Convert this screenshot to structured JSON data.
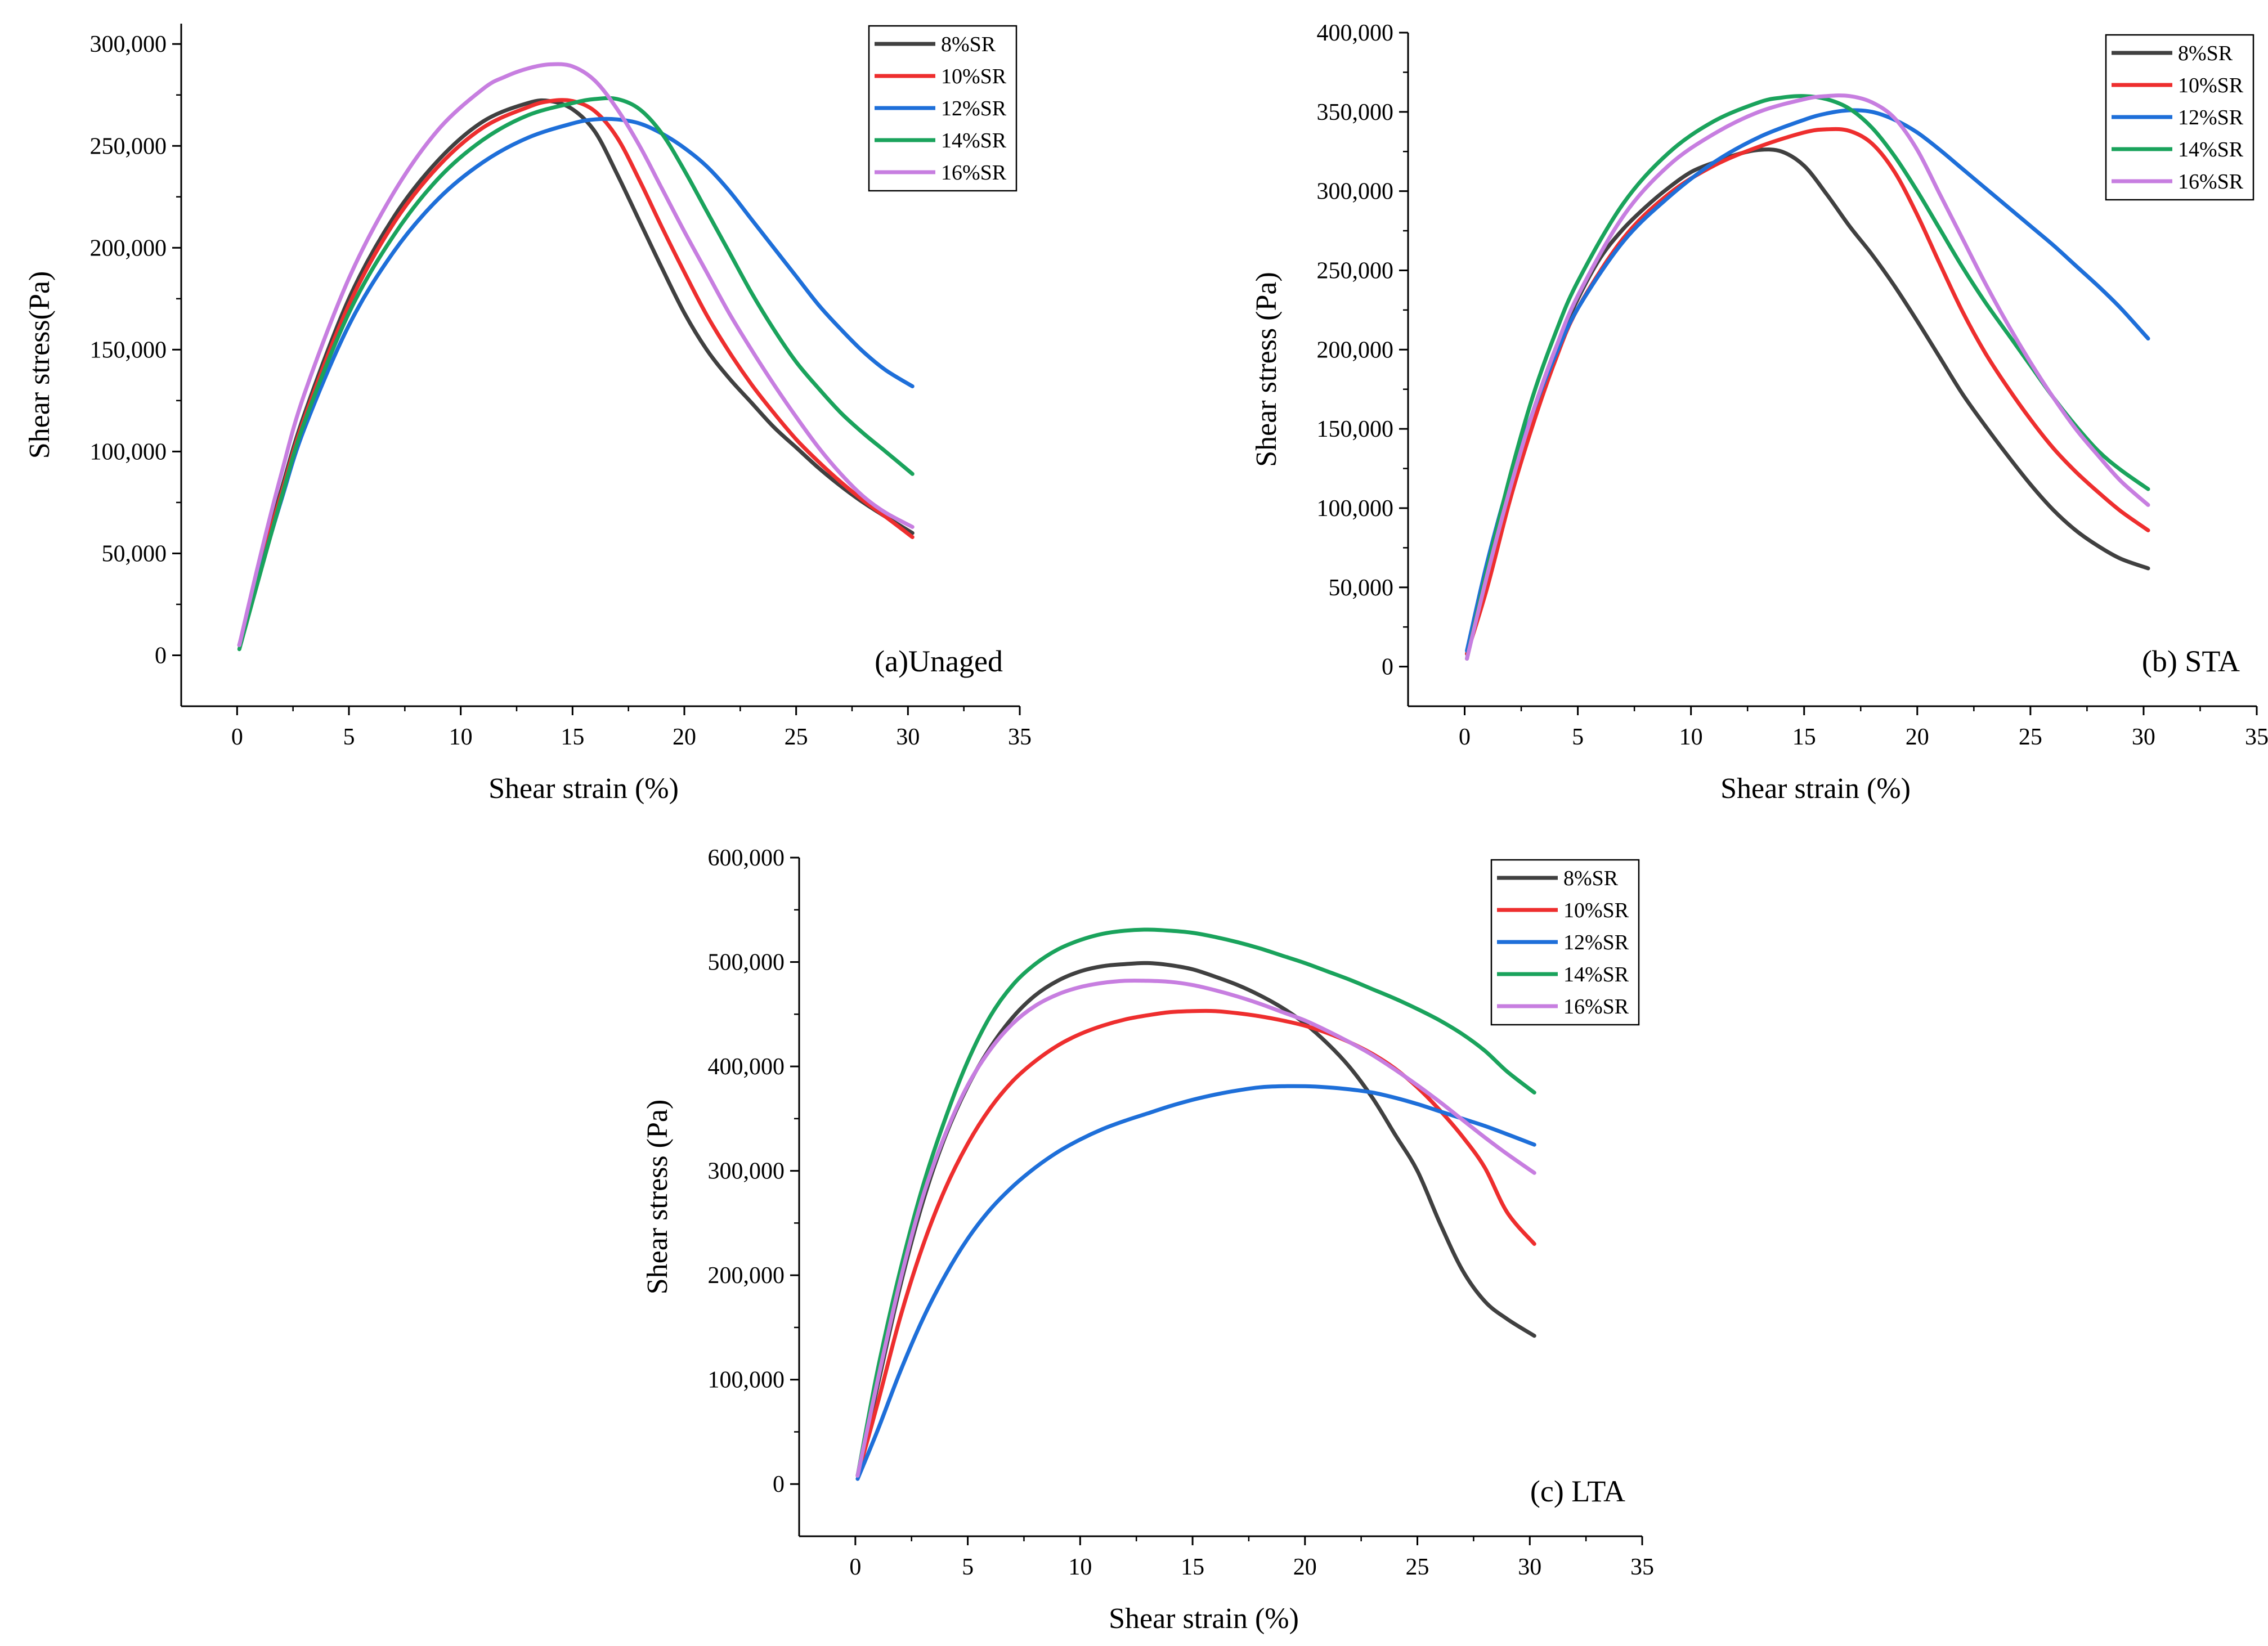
{
  "chart_data": [
    {
      "type": "line",
      "annotation": "(a)Unaged",
      "xlabel": "Shear strain (%)",
      "ylabel": "Shear stress(Pa)",
      "xlim": [
        -2.5,
        35
      ],
      "ylim": [
        -25000,
        310000
      ],
      "xticks": [
        0,
        5,
        10,
        15,
        20,
        25,
        30,
        35
      ],
      "yticks": [
        0,
        50000,
        100000,
        150000,
        200000,
        250000,
        300000
      ],
      "ytick_labels": [
        "0",
        "50,000",
        "100,000",
        "150,000",
        "200,000",
        "250,000",
        "300,000"
      ],
      "legend_position": "top-right",
      "series": [
        {
          "name": "8%SR",
          "color": "#404040",
          "x": [
            0.1,
            1,
            2,
            3,
            5,
            7,
            9,
            11,
            13,
            14,
            15,
            16,
            17,
            18,
            19,
            20,
            21,
            22,
            23,
            24,
            25,
            26,
            27,
            28,
            29,
            30.2
          ],
          "y": [
            5000,
            43000,
            82000,
            118000,
            175000,
            215000,
            243000,
            262000,
            271000,
            272000,
            268000,
            257000,
            236000,
            213000,
            190000,
            168000,
            150000,
            136000,
            124000,
            112000,
            102000,
            92000,
            83000,
            75000,
            68000,
            60000
          ]
        },
        {
          "name": "10%SR",
          "color": "#ee2e2e",
          "x": [
            0.1,
            1,
            2,
            3,
            5,
            7,
            9,
            11,
            13,
            14,
            15,
            16,
            17,
            18,
            19,
            20,
            21,
            22,
            23,
            24,
            25,
            26,
            27,
            28,
            29,
            30.2
          ],
          "y": [
            5000,
            42000,
            80000,
            116000,
            172000,
            212000,
            240000,
            259000,
            269000,
            272000,
            272000,
            267000,
            254000,
            233000,
            210000,
            188000,
            167000,
            149000,
            133000,
            119000,
            106000,
            95000,
            85000,
            76000,
            68000,
            58000
          ]
        },
        {
          "name": "12%SR",
          "color": "#1e6fd9",
          "x": [
            0.1,
            1,
            2,
            3,
            5,
            7,
            9,
            11,
            13,
            15,
            16,
            17,
            18,
            19,
            20,
            21,
            22,
            23,
            24,
            25,
            26,
            27,
            28,
            29,
            30.2
          ],
          "y": [
            5000,
            40000,
            77000,
            111000,
            162000,
            198000,
            224000,
            242000,
            254000,
            261000,
            263000,
            263000,
            261000,
            256000,
            249000,
            240000,
            228000,
            214000,
            200000,
            186000,
            172000,
            160000,
            149000,
            140000,
            132000
          ]
        },
        {
          "name": "14%SR",
          "color": "#1aa35c",
          "x": [
            0.1,
            1,
            2,
            3,
            5,
            7,
            9,
            11,
            13,
            15,
            16,
            17,
            18,
            19,
            20,
            21,
            22,
            23,
            24,
            25,
            26,
            27,
            28,
            29,
            30.2
          ],
          "y": [
            3000,
            39000,
            78000,
            114000,
            168000,
            206000,
            234000,
            253000,
            265000,
            271000,
            273000,
            273000,
            268000,
            256000,
            238000,
            218000,
            198000,
            178000,
            160000,
            144000,
            131000,
            119000,
            109000,
            100000,
            89000
          ]
        },
        {
          "name": "16%SR",
          "color": "#c77ee0",
          "x": [
            0.1,
            1,
            2,
            3,
            5,
            7,
            9,
            11,
            12,
            13,
            14,
            15,
            16,
            17,
            18,
            19,
            20,
            21,
            22,
            23,
            24,
            25,
            26,
            27,
            28,
            29,
            30.2
          ],
          "y": [
            5000,
            47000,
            90000,
            128000,
            185000,
            227000,
            258000,
            278000,
            284000,
            288000,
            290000,
            289000,
            282000,
            268000,
            250000,
            229000,
            208000,
            188000,
            168000,
            150000,
            133000,
            117000,
            102000,
            89000,
            78000,
            70000,
            63000
          ]
        }
      ]
    },
    {
      "type": "line",
      "annotation": "(b) STA",
      "xlabel": "Shear strain (%)",
      "ylabel": "Shear stress (Pa)",
      "xlim": [
        -2.5,
        35
      ],
      "ylim": [
        -25000,
        400000
      ],
      "xticks": [
        0,
        5,
        10,
        15,
        20,
        25,
        30,
        35
      ],
      "yticks": [
        0,
        50000,
        100000,
        150000,
        200000,
        250000,
        300000,
        350000,
        400000
      ],
      "ytick_labels": [
        "0",
        "50,000",
        "100,000",
        "150,000",
        "200,000",
        "250,000",
        "300,000",
        "350,000",
        "400,000"
      ],
      "legend_position": "top-right",
      "series": [
        {
          "name": "8%SR",
          "color": "#404040",
          "x": [
            0.1,
            1,
            2,
            3,
            4,
            5,
            6,
            7,
            8,
            9,
            10,
            11,
            12,
            13,
            14,
            15,
            16,
            17,
            18,
            19,
            20,
            21,
            22,
            23,
            24,
            25,
            26,
            27,
            28,
            29,
            30.2
          ],
          "y": [
            8000,
            60000,
            115000,
            160000,
            200000,
            232000,
            258000,
            276000,
            290000,
            302000,
            312000,
            318000,
            323000,
            326000,
            325000,
            316000,
            298000,
            278000,
            260000,
            240000,
            218000,
            195000,
            172000,
            152000,
            133000,
            115000,
            99000,
            86000,
            76000,
            68000,
            62000
          ]
        },
        {
          "name": "10%SR",
          "color": "#ee2e2e",
          "x": [
            0.1,
            1,
            2,
            3,
            4,
            5,
            7,
            9,
            11,
            13,
            15,
            16,
            17,
            18,
            19,
            20,
            21,
            22,
            23,
            24,
            25,
            26,
            27,
            28,
            29,
            30.2
          ],
          "y": [
            8000,
            50000,
            105000,
            152000,
            193000,
            226000,
            270000,
            298000,
            316000,
            328000,
            337000,
            339000,
            338000,
            330000,
            312000,
            285000,
            254000,
            224000,
            198000,
            176000,
            156000,
            138000,
            123000,
            110000,
            98000,
            86000
          ]
        },
        {
          "name": "12%SR",
          "color": "#1e6fd9",
          "x": [
            0.1,
            1,
            2,
            3,
            4,
            5,
            7,
            9,
            11,
            13,
            15,
            16,
            17,
            18,
            19,
            20,
            21,
            22,
            23,
            24,
            25,
            26,
            27,
            28,
            29,
            30.2
          ],
          "y": [
            10000,
            66000,
            118000,
            160000,
            196000,
            226000,
            268000,
            296000,
            318000,
            334000,
            345000,
            349000,
            351000,
            350000,
            345000,
            337000,
            326000,
            314000,
            302000,
            290000,
            278000,
            266000,
            253000,
            240000,
            226000,
            207000
          ]
        },
        {
          "name": "14%SR",
          "color": "#1aa35c",
          "x": [
            0.1,
            1,
            2,
            3,
            4,
            5,
            7,
            9,
            11,
            13,
            14,
            15,
            16,
            17,
            18,
            19,
            20,
            21,
            22,
            23,
            24,
            25,
            26,
            27,
            28,
            29,
            30.2
          ],
          "y": [
            5000,
            62000,
            120000,
            170000,
            210000,
            243000,
            292000,
            324000,
            344000,
            356000,
            359000,
            360000,
            358000,
            352000,
            340000,
            322000,
            300000,
            276000,
            252000,
            230000,
            210000,
            190000,
            170000,
            152000,
            136000,
            124000,
            112000
          ]
        },
        {
          "name": "16%SR",
          "color": "#c77ee0",
          "x": [
            0.1,
            1,
            2,
            3,
            4,
            5,
            7,
            9,
            11,
            13,
            15,
            16,
            17,
            18,
            19,
            20,
            21,
            22,
            23,
            24,
            25,
            26,
            27,
            28,
            29,
            30.2
          ],
          "y": [
            5000,
            58000,
            112000,
            160000,
            200000,
            234000,
            284000,
            316000,
            336000,
            350000,
            358000,
            360000,
            360000,
            356000,
            346000,
            326000,
            298000,
            270000,
            242000,
            216000,
            192000,
            170000,
            150000,
            133000,
            117000,
            102000
          ]
        }
      ]
    },
    {
      "type": "line",
      "annotation": "(c) LTA",
      "xlabel": "Shear strain (%)",
      "ylabel": "Shear stress (Pa)",
      "xlim": [
        -2.5,
        35
      ],
      "ylim": [
        -50000,
        600000
      ],
      "xticks": [
        0,
        5,
        10,
        15,
        20,
        25,
        30,
        35
      ],
      "yticks": [
        0,
        100000,
        200000,
        300000,
        400000,
        500000,
        600000
      ],
      "ytick_labels": [
        "0",
        "100,000",
        "200,000",
        "300,000",
        "400,000",
        "500,000",
        "600,000"
      ],
      "legend_position": "top-right",
      "series": [
        {
          "name": "8%SR",
          "color": "#404040",
          "x": [
            0.1,
            1,
            2,
            3,
            4,
            5,
            6,
            7,
            8,
            9,
            10,
            11,
            12,
            13,
            14,
            15,
            16,
            17,
            18,
            19,
            20,
            21,
            22,
            23,
            24,
            25,
            26,
            27,
            28,
            29,
            30.2
          ],
          "y": [
            8000,
            95000,
            190000,
            270000,
            333000,
            381000,
            418000,
            447000,
            468000,
            482000,
            491000,
            496000,
            498000,
            499000,
            497000,
            493000,
            486000,
            478000,
            468000,
            456000,
            441000,
            422000,
            399000,
            370000,
            335000,
            300000,
            250000,
            205000,
            175000,
            158000,
            142000
          ]
        },
        {
          "name": "10%SR",
          "color": "#ee2e2e",
          "x": [
            0.1,
            1,
            2,
            3,
            4,
            5,
            6,
            7,
            8,
            9,
            10,
            11,
            12,
            13,
            14,
            15,
            16,
            17,
            18,
            19,
            20,
            21,
            22,
            23,
            24,
            25,
            26,
            27,
            28,
            29,
            30.2
          ],
          "y": [
            8000,
            78000,
            160000,
            228000,
            283000,
            326000,
            360000,
            386000,
            405000,
            420000,
            431000,
            439000,
            445000,
            449000,
            452000,
            453000,
            453000,
            451000,
            448000,
            444000,
            439000,
            432000,
            423000,
            412000,
            398000,
            380000,
            358000,
            333000,
            303000,
            260000,
            230000
          ]
        },
        {
          "name": "12%SR",
          "color": "#1e6fd9",
          "x": [
            0.1,
            1,
            2,
            3,
            4,
            5,
            6,
            7,
            8,
            9,
            10,
            11,
            12,
            13,
            14,
            15,
            16,
            17,
            18,
            19,
            20,
            21,
            22,
            23,
            24,
            25,
            26,
            27,
            28,
            29,
            30.2
          ],
          "y": [
            5000,
            52000,
            108000,
            158000,
            200000,
            235000,
            263000,
            285000,
            303000,
            318000,
            330000,
            340000,
            348000,
            355000,
            362000,
            368000,
            373000,
            377000,
            380000,
            381000,
            381000,
            380000,
            378000,
            375000,
            370000,
            364000,
            357000,
            350000,
            343000,
            335000,
            325000
          ]
        },
        {
          "name": "14%SR",
          "color": "#1aa35c",
          "x": [
            0.1,
            1,
            2,
            3,
            4,
            5,
            6,
            7,
            8,
            9,
            10,
            11,
            12,
            13,
            14,
            15,
            16,
            17,
            18,
            19,
            20,
            21,
            22,
            23,
            24,
            25,
            26,
            27,
            28,
            29,
            30.2
          ],
          "y": [
            8000,
            110000,
            205000,
            285000,
            350000,
            405000,
            448000,
            478000,
            498000,
            512000,
            521000,
            527000,
            530000,
            531000,
            530000,
            528000,
            524000,
            519000,
            513000,
            506000,
            499000,
            491000,
            483000,
            474000,
            465000,
            455000,
            444000,
            431000,
            415000,
            395000,
            375000
          ]
        },
        {
          "name": "16%SR",
          "color": "#c77ee0",
          "x": [
            0.1,
            1,
            2,
            3,
            4,
            5,
            6,
            7,
            8,
            9,
            10,
            11,
            12,
            13,
            14,
            15,
            16,
            17,
            18,
            19,
            20,
            21,
            22,
            23,
            24,
            25,
            26,
            27,
            28,
            29,
            30.2
          ],
          "y": [
            8000,
            100000,
            195000,
            275000,
            335000,
            382000,
            416000,
            441000,
            458000,
            469000,
            476000,
            480000,
            482000,
            482000,
            481000,
            478000,
            473000,
            467000,
            460000,
            452000,
            444000,
            434000,
            423000,
            411000,
            397000,
            382000,
            366000,
            349000,
            332000,
            316000,
            298000
          ]
        }
      ]
    }
  ]
}
